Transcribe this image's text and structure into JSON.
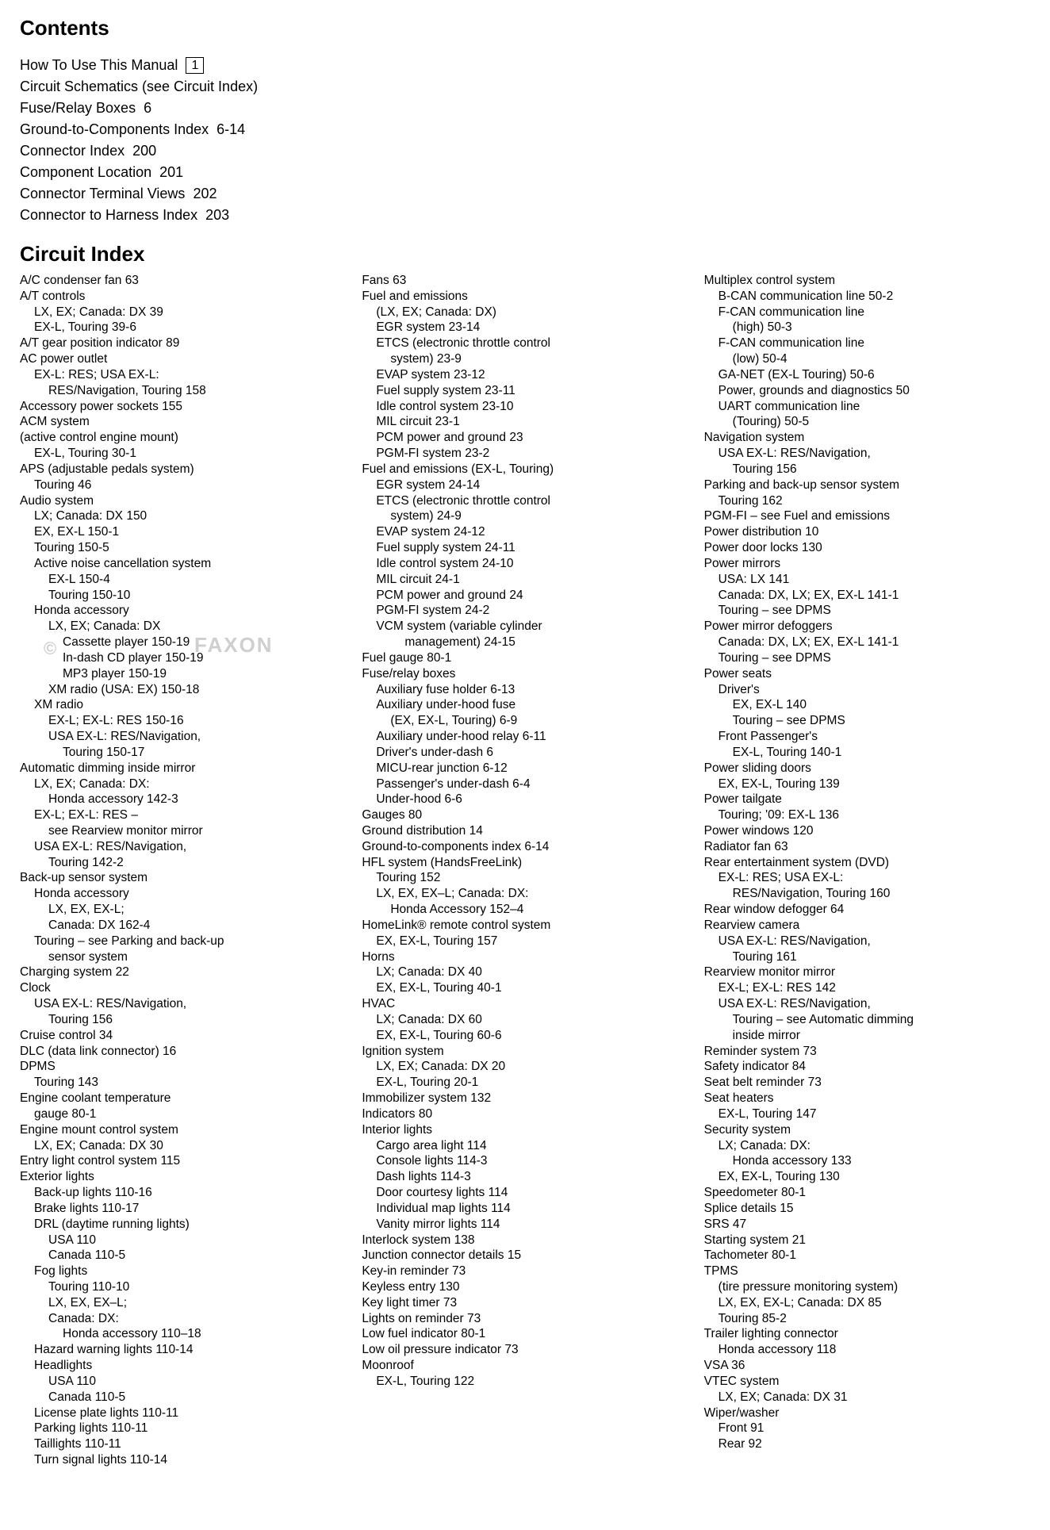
{
  "contents": {
    "title": "Contents",
    "items": [
      {
        "label": "How To Use This Manual",
        "page": "1",
        "boxed": true
      },
      {
        "label": "Circuit Schematics (see Circuit Index)",
        "page": ""
      },
      {
        "label": "Fuse/Relay Boxes",
        "page": "6"
      },
      {
        "label": "Ground-to-Components Index",
        "page": "6-14"
      },
      {
        "label": "Connector Index",
        "page": "200"
      },
      {
        "label": "Component Location",
        "page": "201"
      },
      {
        "label": "Connector Terminal Views",
        "page": "202"
      },
      {
        "label": "Connector to Harness Index",
        "page": "203"
      }
    ]
  },
  "circuit_index_title": "Circuit Index",
  "watermark": {
    "c": "©",
    "text": "FAXON"
  },
  "col1": [
    {
      "t": "A/C condenser fan   63",
      "i": 0
    },
    {
      "t": "A/T controls",
      "i": 0
    },
    {
      "t": "LX, EX; Canada: DX   39",
      "i": 1
    },
    {
      "t": "EX-L, Touring   39-6",
      "i": 1
    },
    {
      "t": "A/T gear position indicator   89",
      "i": 0
    },
    {
      "t": "AC power outlet",
      "i": 0
    },
    {
      "t": "EX-L: RES; USA EX-L:",
      "i": 1
    },
    {
      "t": "RES/Navigation, Touring   158",
      "i": 2
    },
    {
      "t": "Accessory power sockets   155",
      "i": 0
    },
    {
      "t": "ACM system",
      "i": 0
    },
    {
      "t": "(active control engine mount)",
      "i": 0
    },
    {
      "t": "EX-L, Touring   30-1",
      "i": 1
    },
    {
      "t": "APS (adjustable pedals system)",
      "i": 0
    },
    {
      "t": "Touring   46",
      "i": 1
    },
    {
      "t": "Audio system",
      "i": 0
    },
    {
      "t": "LX; Canada: DX   150",
      "i": 1
    },
    {
      "t": "EX, EX-L   150-1",
      "i": 1
    },
    {
      "t": "Touring   150-5",
      "i": 1
    },
    {
      "t": "Active noise cancellation system",
      "i": 1
    },
    {
      "t": "EX-L   150-4",
      "i": 2
    },
    {
      "t": "Touring   150-10",
      "i": 2
    },
    {
      "t": "Honda accessory",
      "i": 1
    },
    {
      "t": "LX, EX; Canada: DX",
      "i": 2
    },
    {
      "t": "Cassette player   150-19",
      "i": 3
    },
    {
      "t": "In-dash CD player   150-19",
      "i": 3
    },
    {
      "t": "MP3 player   150-19",
      "i": 3
    },
    {
      "t": "XM radio (USA: EX)   150-18",
      "i": 2
    },
    {
      "t": "XM radio",
      "i": 1
    },
    {
      "t": "EX-L; EX-L: RES   150-16",
      "i": 2
    },
    {
      "t": "USA EX-L: RES/Navigation,",
      "i": 2
    },
    {
      "t": "Touring   150-17",
      "i": 3
    },
    {
      "t": "Automatic dimming inside mirror",
      "i": 0
    },
    {
      "t": "LX, EX; Canada: DX:",
      "i": 1
    },
    {
      "t": "Honda accessory   142-3",
      "i": 2
    },
    {
      "t": "EX-L; EX-L: RES –",
      "i": 1
    },
    {
      "t": "see Rearview monitor mirror",
      "i": 2
    },
    {
      "t": "USA EX-L: RES/Navigation,",
      "i": 1
    },
    {
      "t": "Touring   142-2",
      "i": 2
    },
    {
      "t": "Back-up sensor system",
      "i": 0
    },
    {
      "t": "Honda accessory",
      "i": 1
    },
    {
      "t": "LX, EX, EX-L;",
      "i": 2
    },
    {
      "t": "Canada: DX   162-4",
      "i": 2
    },
    {
      "t": "Touring – see Parking and back-up",
      "i": 1
    },
    {
      "t": "sensor system",
      "i": 2
    },
    {
      "t": "Charging system   22",
      "i": 0
    },
    {
      "t": "Clock",
      "i": 0
    },
    {
      "t": "USA EX-L: RES/Navigation,",
      "i": 1
    },
    {
      "t": "Touring   156",
      "i": 2
    },
    {
      "t": "Cruise control   34",
      "i": 0
    },
    {
      "t": "DLC (data link connector)   16",
      "i": 0
    },
    {
      "t": "DPMS",
      "i": 0
    },
    {
      "t": "Touring   143",
      "i": 1
    },
    {
      "t": "Engine coolant temperature",
      "i": 0
    },
    {
      "t": "gauge   80-1",
      "i": 1
    },
    {
      "t": "Engine mount control system",
      "i": 0
    },
    {
      "t": "LX, EX; Canada: DX   30",
      "i": 1
    },
    {
      "t": "Entry light control system   115",
      "i": 0
    },
    {
      "t": "Exterior lights",
      "i": 0
    },
    {
      "t": "Back-up lights   110-16",
      "i": 1
    },
    {
      "t": "Brake lights   110-17",
      "i": 1
    },
    {
      "t": "DRL (daytime running lights)",
      "i": 1
    },
    {
      "t": "USA   110",
      "i": 2
    },
    {
      "t": "Canada   110-5",
      "i": 2
    },
    {
      "t": "Fog lights",
      "i": 1
    },
    {
      "t": "Touring   110-10",
      "i": 2
    },
    {
      "t": "LX, EX, EX–L;",
      "i": 2
    },
    {
      "t": "Canada: DX:",
      "i": 2
    },
    {
      "t": "Honda accessory 110–18",
      "i": 3
    },
    {
      "t": "Hazard warning lights   110-14",
      "i": 1
    },
    {
      "t": "Headlights",
      "i": 1
    },
    {
      "t": "USA   110",
      "i": 2
    },
    {
      "t": "Canada   110-5",
      "i": 2
    },
    {
      "t": "License plate lights   110-11",
      "i": 1
    },
    {
      "t": "Parking lights   110-11",
      "i": 1
    },
    {
      "t": "Taillights   110-11",
      "i": 1
    },
    {
      "t": "Turn signal lights   110-14",
      "i": 1
    }
  ],
  "col2": [
    {
      "t": "Fans   63",
      "i": 0
    },
    {
      "t": "Fuel and emissions",
      "i": 0
    },
    {
      "t": "(LX, EX; Canada: DX)",
      "i": 1
    },
    {
      "t": "EGR system   23-14",
      "i": 1
    },
    {
      "t": "ETCS (electronic throttle control",
      "i": 1
    },
    {
      "t": "system)   23-9",
      "i": 2
    },
    {
      "t": "EVAP system   23-12",
      "i": 1
    },
    {
      "t": "Fuel supply system   23-11",
      "i": 1
    },
    {
      "t": "Idle control system   23-10",
      "i": 1
    },
    {
      "t": "MIL circuit   23-1",
      "i": 1
    },
    {
      "t": "PCM power and ground   23",
      "i": 1
    },
    {
      "t": "PGM-FI system   23-2",
      "i": 1
    },
    {
      "t": "Fuel and emissions (EX-L, Touring)",
      "i": 0
    },
    {
      "t": "EGR system   24-14",
      "i": 1
    },
    {
      "t": "ETCS (electronic throttle control",
      "i": 1
    },
    {
      "t": "system)   24-9",
      "i": 2
    },
    {
      "t": "EVAP system   24-12",
      "i": 1
    },
    {
      "t": "Fuel supply system   24-11",
      "i": 1
    },
    {
      "t": "Idle control system   24-10",
      "i": 1
    },
    {
      "t": "MIL circuit   24-1",
      "i": 1
    },
    {
      "t": "PCM power and ground   24",
      "i": 1
    },
    {
      "t": "PGM-FI system   24-2",
      "i": 1
    },
    {
      "t": "VCM system (variable cylinder",
      "i": 1
    },
    {
      "t": "management)   24-15",
      "i": 3
    },
    {
      "t": "Fuel gauge   80-1",
      "i": 0
    },
    {
      "t": "Fuse/relay boxes",
      "i": 0
    },
    {
      "t": "Auxiliary fuse holder   6-13",
      "i": 1
    },
    {
      "t": "Auxiliary under-hood fuse",
      "i": 1
    },
    {
      "t": "(EX, EX-L, Touring)   6-9",
      "i": 2
    },
    {
      "t": "Auxiliary under-hood relay   6-11",
      "i": 1
    },
    {
      "t": "Driver's under-dash   6",
      "i": 1
    },
    {
      "t": "MICU-rear junction   6-12",
      "i": 1
    },
    {
      "t": "Passenger's under-dash   6-4",
      "i": 1
    },
    {
      "t": "Under-hood   6-6",
      "i": 1
    },
    {
      "t": "Gauges   80",
      "i": 0
    },
    {
      "t": "Ground distribution   14",
      "i": 0
    },
    {
      "t": "Ground-to-components index   6-14",
      "i": 0
    },
    {
      "t": "HFL system (HandsFreeLink)",
      "i": 0
    },
    {
      "t": "Touring   152",
      "i": 1
    },
    {
      "t": "LX, EX, EX–L; Canada: DX:",
      "i": 1
    },
    {
      "t": "Honda Accessory   152–4",
      "i": 2
    },
    {
      "t": "HomeLink® remote control system",
      "i": 0
    },
    {
      "t": "EX, EX-L, Touring   157",
      "i": 1
    },
    {
      "t": "Horns",
      "i": 0
    },
    {
      "t": "LX; Canada: DX   40",
      "i": 1
    },
    {
      "t": "EX, EX-L, Touring   40-1",
      "i": 1
    },
    {
      "t": "HVAC",
      "i": 0
    },
    {
      "t": "LX; Canada: DX   60",
      "i": 1
    },
    {
      "t": "EX, EX-L, Touring   60-6",
      "i": 1
    },
    {
      "t": "Ignition system",
      "i": 0
    },
    {
      "t": "LX, EX; Canada: DX   20",
      "i": 1
    },
    {
      "t": "EX-L, Touring   20-1",
      "i": 1
    },
    {
      "t": "Immobilizer system   132",
      "i": 0
    },
    {
      "t": "Indicators   80",
      "i": 0
    },
    {
      "t": "Interior lights",
      "i": 0
    },
    {
      "t": "Cargo area light   114",
      "i": 1
    },
    {
      "t": "Console lights   114-3",
      "i": 1
    },
    {
      "t": "Dash lights   114-3",
      "i": 1
    },
    {
      "t": "Door courtesy lights   114",
      "i": 1
    },
    {
      "t": "Individual map lights   114",
      "i": 1
    },
    {
      "t": "Vanity mirror lights   114",
      "i": 1
    },
    {
      "t": "Interlock system   138",
      "i": 0
    },
    {
      "t": "Junction connector details   15",
      "i": 0
    },
    {
      "t": "Key-in reminder   73",
      "i": 0
    },
    {
      "t": "Keyless entry   130",
      "i": 0
    },
    {
      "t": "Key light timer   73",
      "i": 0
    },
    {
      "t": "Lights on reminder   73",
      "i": 0
    },
    {
      "t": "Low fuel indicator   80-1",
      "i": 0
    },
    {
      "t": "Low oil pressure indicator   73",
      "i": 0
    },
    {
      "t": "Moonroof",
      "i": 0
    },
    {
      "t": "EX-L, Touring   122",
      "i": 1
    }
  ],
  "col3": [
    {
      "t": "Multiplex control system",
      "i": 0
    },
    {
      "t": "B-CAN communication line   50-2",
      "i": 1
    },
    {
      "t": "F-CAN communication line",
      "i": 1
    },
    {
      "t": "(high)   50-3",
      "i": 2
    },
    {
      "t": "F-CAN communication line",
      "i": 1
    },
    {
      "t": "(low)   50-4",
      "i": 2
    },
    {
      "t": "GA-NET (EX-L Touring)   50-6",
      "i": 1
    },
    {
      "t": "Power, grounds and diagnostics   50",
      "i": 1
    },
    {
      "t": "UART communication line",
      "i": 1
    },
    {
      "t": "(Touring)   50-5",
      "i": 2
    },
    {
      "t": "Navigation system",
      "i": 0
    },
    {
      "t": "USA EX-L: RES/Navigation,",
      "i": 1
    },
    {
      "t": "Touring   156",
      "i": 2
    },
    {
      "t": "Parking and back-up sensor system",
      "i": 0
    },
    {
      "t": "Touring   162",
      "i": 1
    },
    {
      "t": "PGM-FI – see Fuel and emissions",
      "i": 0
    },
    {
      "t": "Power distribution   10",
      "i": 0
    },
    {
      "t": "Power door locks   130",
      "i": 0
    },
    {
      "t": "Power mirrors",
      "i": 0
    },
    {
      "t": "USA: LX   141",
      "i": 1
    },
    {
      "t": "Canada: DX, LX; EX, EX-L   141-1",
      "i": 1
    },
    {
      "t": "Touring – see DPMS",
      "i": 1
    },
    {
      "t": "Power mirror defoggers",
      "i": 0
    },
    {
      "t": "Canada: DX, LX; EX, EX-L   141-1",
      "i": 1
    },
    {
      "t": "Touring – see DPMS",
      "i": 1
    },
    {
      "t": "Power seats",
      "i": 0
    },
    {
      "t": "Driver's",
      "i": 1
    },
    {
      "t": "EX, EX-L   140",
      "i": 2
    },
    {
      "t": "Touring – see DPMS",
      "i": 2
    },
    {
      "t": "Front Passenger's",
      "i": 1
    },
    {
      "t": "EX-L, Touring   140-1",
      "i": 2
    },
    {
      "t": "Power sliding doors",
      "i": 0
    },
    {
      "t": "EX, EX-L, Touring   139",
      "i": 1
    },
    {
      "t": "Power tailgate",
      "i": 0
    },
    {
      "t": "Touring; '09: EX-L   136",
      "i": 1
    },
    {
      "t": "Power windows   120",
      "i": 0
    },
    {
      "t": "Radiator fan   63",
      "i": 0
    },
    {
      "t": "Rear entertainment system (DVD)",
      "i": 0
    },
    {
      "t": "EX-L: RES; USA EX-L:",
      "i": 1
    },
    {
      "t": "RES/Navigation, Touring   160",
      "i": 2
    },
    {
      "t": "Rear window defogger   64",
      "i": 0
    },
    {
      "t": "Rearview camera",
      "i": 0
    },
    {
      "t": "USA EX-L: RES/Navigation,",
      "i": 1
    },
    {
      "t": "Touring   161",
      "i": 2
    },
    {
      "t": "Rearview monitor mirror",
      "i": 0
    },
    {
      "t": "EX-L; EX-L: RES   142",
      "i": 1
    },
    {
      "t": "USA EX-L: RES/Navigation,",
      "i": 1
    },
    {
      "t": "Touring – see Automatic dimming",
      "i": 2
    },
    {
      "t": "inside mirror",
      "i": 2
    },
    {
      "t": "Reminder system   73",
      "i": 0
    },
    {
      "t": "Safety indicator   84",
      "i": 0
    },
    {
      "t": "Seat belt reminder   73",
      "i": 0
    },
    {
      "t": "Seat heaters",
      "i": 0
    },
    {
      "t": "EX-L, Touring   147",
      "i": 1
    },
    {
      "t": "Security system",
      "i": 0
    },
    {
      "t": "LX; Canada: DX:",
      "i": 1
    },
    {
      "t": "Honda accessory   133",
      "i": 2
    },
    {
      "t": "EX, EX-L, Touring   130",
      "i": 1
    },
    {
      "t": "Speedometer   80-1",
      "i": 0
    },
    {
      "t": "Splice details   15",
      "i": 0
    },
    {
      "t": "SRS   47",
      "i": 0
    },
    {
      "t": "Starting system   21",
      "i": 0
    },
    {
      "t": "Tachometer   80-1",
      "i": 0
    },
    {
      "t": "TPMS",
      "i": 0
    },
    {
      "t": "(tire pressure monitoring system)",
      "i": 1
    },
    {
      "t": "LX, EX, EX-L; Canada: DX   85",
      "i": 1
    },
    {
      "t": "Touring   85-2",
      "i": 1
    },
    {
      "t": "Trailer lighting connector",
      "i": 0
    },
    {
      "t": "Honda accessory   118",
      "i": 1
    },
    {
      "t": "VSA   36",
      "i": 0
    },
    {
      "t": "VTEC system",
      "i": 0
    },
    {
      "t": "LX, EX; Canada: DX   31",
      "i": 1
    },
    {
      "t": "Wiper/washer",
      "i": 0
    },
    {
      "t": "Front   91",
      "i": 1
    },
    {
      "t": "Rear   92",
      "i": 1
    }
  ]
}
